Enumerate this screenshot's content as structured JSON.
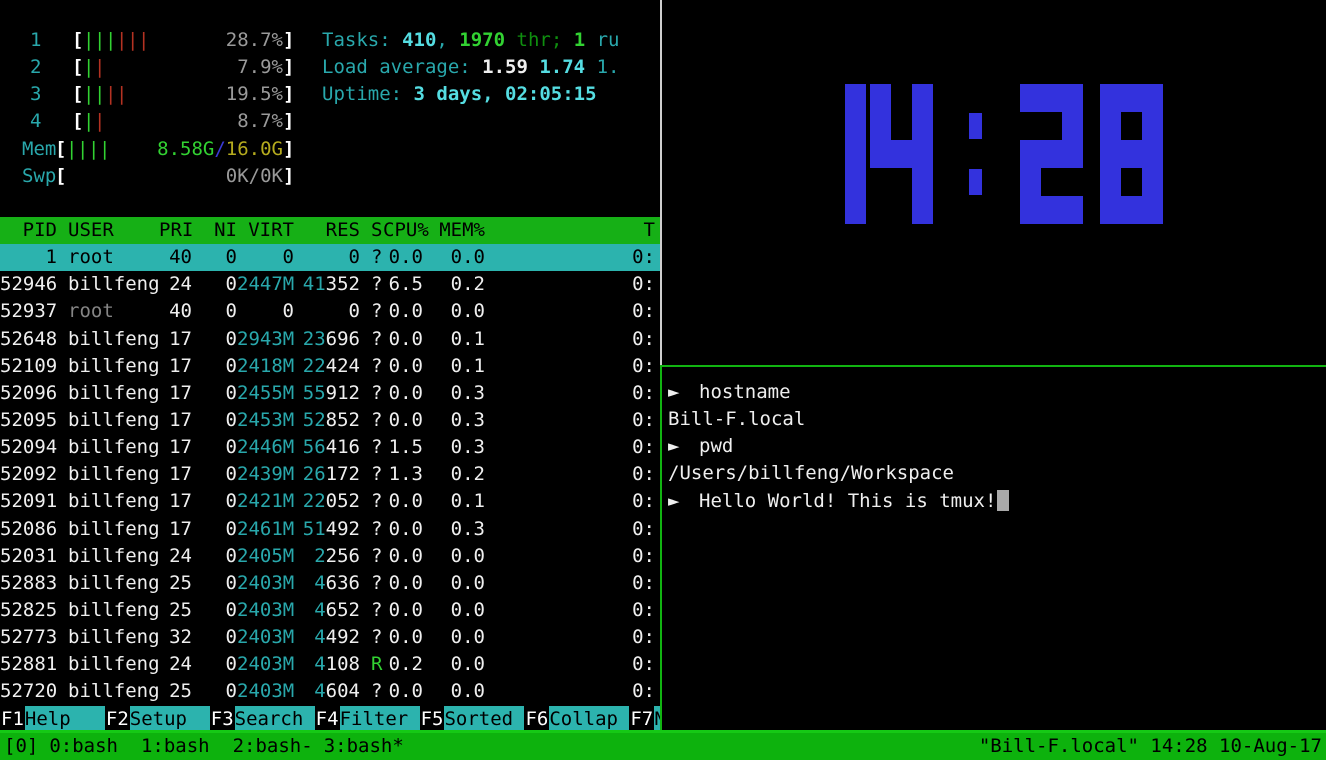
{
  "colors": {
    "cyan": "#29a8ac",
    "cyan_bright": "#55dde2",
    "white": "#efefef",
    "green_bright": "#32d232",
    "green_dark": "#0f8f0f",
    "red": "#b43222",
    "gray": "#9a9a9a",
    "dim": "#858585",
    "yellow": "#b5ab1e",
    "blue": "#3a3ad6",
    "clock_blue": "#3332dd",
    "selection_bg": "#2cb3ae",
    "header_bg": "#16b016",
    "status_bg": "#0db20d",
    "status_line": "#15c915",
    "border_active": "#11b411",
    "border_inactive": "#cfcfcf"
  },
  "htop": {
    "meters": [
      {
        "kind": "cpu",
        "label": "1",
        "bars": [
          "green",
          "green",
          "green",
          "red",
          "red",
          "red"
        ],
        "value": "28.7%"
      },
      {
        "kind": "cpu",
        "label": "2",
        "bars": [
          "green",
          "red"
        ],
        "value": "7.9%"
      },
      {
        "kind": "cpu",
        "label": "3",
        "bars": [
          "green",
          "green",
          "red",
          "red"
        ],
        "value": "19.5%"
      },
      {
        "kind": "cpu",
        "label": "4",
        "bars": [
          "green",
          "red"
        ],
        "value": "8.7%"
      },
      {
        "kind": "mem",
        "label": "Mem",
        "bars": [
          "green",
          "green",
          "green",
          "green"
        ],
        "value_segments": [
          {
            "text": "8.58G",
            "color": "bgreen"
          },
          {
            "text": "/",
            "color": "blue"
          },
          {
            "text": "16.0G",
            "color": "yellow"
          }
        ]
      },
      {
        "kind": "swp",
        "label": "Swp",
        "bars": [],
        "value": "0K/0K"
      }
    ],
    "summary_lines": [
      {
        "name": "tasks",
        "segments": [
          {
            "text": "Tasks: ",
            "color": "cyan"
          },
          {
            "text": "410",
            "color": "bcyan",
            "bold": true
          },
          {
            "text": ", ",
            "color": "cyan"
          },
          {
            "text": "1970",
            "color": "bgreen",
            "bold": true
          },
          {
            "text": " thr",
            "color": "dgreen"
          },
          {
            "text": "; ",
            "color": "dgreen"
          },
          {
            "text": "1",
            "color": "bgreen",
            "bold": true
          },
          {
            "text": " ru",
            "color": "cyan"
          }
        ]
      },
      {
        "name": "load-average",
        "segments": [
          {
            "text": "Load average: ",
            "color": "cyan"
          },
          {
            "text": "1.59 ",
            "color": "white",
            "bold": true
          },
          {
            "text": "1.74 ",
            "color": "bcyan",
            "bold": true
          },
          {
            "text": "1.",
            "color": "cyan"
          }
        ]
      },
      {
        "name": "uptime",
        "segments": [
          {
            "text": "Uptime: ",
            "color": "cyan"
          },
          {
            "text": "3 days, 02:05:15",
            "color": "bcyan",
            "bold": true
          }
        ]
      }
    ],
    "table": {
      "columns": {
        "pid": "PID",
        "user": "USER",
        "pri": "PRI",
        "ni": "NI",
        "virt": "VIRT",
        "res": "RES",
        "s": "S",
        "cpu": "CPU%",
        "mem": "MEM%",
        "time": "T"
      },
      "rows": [
        {
          "pid": "1",
          "user": "root",
          "pri": "40",
          "ni": "0",
          "virt": "0",
          "res_hi": "",
          "res_lo": "0",
          "s": "?",
          "cpu": "0.0",
          "mem": "0.0",
          "time": "0:",
          "selected": true
        },
        {
          "pid": "52946",
          "user": "billfeng",
          "pri": "24",
          "ni": "0",
          "virt": "2447M",
          "res_hi": "41",
          "res_lo": "352",
          "s": "?",
          "cpu": "6.5",
          "mem": "0.2",
          "time": "0:"
        },
        {
          "pid": "52937",
          "user": "root",
          "pri": "40",
          "ni": "0",
          "virt": "0",
          "res_hi": "",
          "res_lo": "0",
          "s": "?",
          "cpu": "0.0",
          "mem": "0.0",
          "time": "0:",
          "dim_user": true
        },
        {
          "pid": "52648",
          "user": "billfeng",
          "pri": "17",
          "ni": "0",
          "virt": "2943M",
          "res_hi": "23",
          "res_lo": "696",
          "s": "?",
          "cpu": "0.0",
          "mem": "0.1",
          "time": "0:"
        },
        {
          "pid": "52109",
          "user": "billfeng",
          "pri": "17",
          "ni": "0",
          "virt": "2418M",
          "res_hi": "22",
          "res_lo": "424",
          "s": "?",
          "cpu": "0.0",
          "mem": "0.1",
          "time": "0:"
        },
        {
          "pid": "52096",
          "user": "billfeng",
          "pri": "17",
          "ni": "0",
          "virt": "2455M",
          "res_hi": "55",
          "res_lo": "912",
          "s": "?",
          "cpu": "0.0",
          "mem": "0.3",
          "time": "0:"
        },
        {
          "pid": "52095",
          "user": "billfeng",
          "pri": "17",
          "ni": "0",
          "virt": "2453M",
          "res_hi": "52",
          "res_lo": "852",
          "s": "?",
          "cpu": "0.0",
          "mem": "0.3",
          "time": "0:"
        },
        {
          "pid": "52094",
          "user": "billfeng",
          "pri": "17",
          "ni": "0",
          "virt": "2446M",
          "res_hi": "56",
          "res_lo": "416",
          "s": "?",
          "cpu": "1.5",
          "mem": "0.3",
          "time": "0:"
        },
        {
          "pid": "52092",
          "user": "billfeng",
          "pri": "17",
          "ni": "0",
          "virt": "2439M",
          "res_hi": "26",
          "res_lo": "172",
          "s": "?",
          "cpu": "1.3",
          "mem": "0.2",
          "time": "0:"
        },
        {
          "pid": "52091",
          "user": "billfeng",
          "pri": "17",
          "ni": "0",
          "virt": "2421M",
          "res_hi": "22",
          "res_lo": "052",
          "s": "?",
          "cpu": "0.0",
          "mem": "0.1",
          "time": "0:"
        },
        {
          "pid": "52086",
          "user": "billfeng",
          "pri": "17",
          "ni": "0",
          "virt": "2461M",
          "res_hi": "51",
          "res_lo": "492",
          "s": "?",
          "cpu": "0.0",
          "mem": "0.3",
          "time": "0:"
        },
        {
          "pid": "52031",
          "user": "billfeng",
          "pri": "24",
          "ni": "0",
          "virt": "2405M",
          "res_hi": "2",
          "res_lo": "256",
          "s": "?",
          "cpu": "0.0",
          "mem": "0.0",
          "time": "0:"
        },
        {
          "pid": "52883",
          "user": "billfeng",
          "pri": "25",
          "ni": "0",
          "virt": "2403M",
          "res_hi": "4",
          "res_lo": "636",
          "s": "?",
          "cpu": "0.0",
          "mem": "0.0",
          "time": "0:"
        },
        {
          "pid": "52825",
          "user": "billfeng",
          "pri": "25",
          "ni": "0",
          "virt": "2403M",
          "res_hi": "4",
          "res_lo": "652",
          "s": "?",
          "cpu": "0.0",
          "mem": "0.0",
          "time": "0:"
        },
        {
          "pid": "52773",
          "user": "billfeng",
          "pri": "32",
          "ni": "0",
          "virt": "2403M",
          "res_hi": "4",
          "res_lo": "492",
          "s": "?",
          "cpu": "0.0",
          "mem": "0.0",
          "time": "0:"
        },
        {
          "pid": "52881",
          "user": "billfeng",
          "pri": "24",
          "ni": "0",
          "virt": "2403M",
          "res_hi": "4",
          "res_lo": "108",
          "s": "R",
          "cpu": "0.2",
          "mem": "0.0",
          "time": "0:",
          "s_green": true
        },
        {
          "pid": "52720",
          "user": "billfeng",
          "pri": "25",
          "ni": "0",
          "virt": "2403M",
          "res_hi": "4",
          "res_lo": "604",
          "s": "?",
          "cpu": "0.0",
          "mem": "0.0",
          "time": "0:"
        }
      ]
    },
    "fkeys": [
      {
        "key": "F1",
        "label": "Help"
      },
      {
        "key": "F2",
        "label": "Setup"
      },
      {
        "key": "F3",
        "label": "Search"
      },
      {
        "key": "F4",
        "label": "Filter"
      },
      {
        "key": "F5",
        "label": "Sorted"
      },
      {
        "key": "F6",
        "label": "Collap"
      },
      {
        "key": "F7",
        "label": "N"
      }
    ]
  },
  "clock": {
    "time": "14:28",
    "digit_patterns": {
      "0": [
        1,
        1,
        1,
        1,
        0,
        1,
        1,
        0,
        1,
        1,
        0,
        1,
        1,
        1,
        1
      ],
      "1": [
        0,
        0,
        1,
        0,
        0,
        1,
        0,
        0,
        1,
        0,
        0,
        1,
        0,
        0,
        1
      ],
      "2": [
        1,
        1,
        1,
        0,
        0,
        1,
        1,
        1,
        1,
        1,
        0,
        0,
        1,
        1,
        1
      ],
      "3": [
        1,
        1,
        1,
        0,
        0,
        1,
        1,
        1,
        1,
        0,
        0,
        1,
        1,
        1,
        1
      ],
      "4": [
        1,
        0,
        1,
        1,
        0,
        1,
        1,
        1,
        1,
        0,
        0,
        1,
        0,
        0,
        1
      ],
      "5": [
        1,
        1,
        1,
        1,
        0,
        0,
        1,
        1,
        1,
        0,
        0,
        1,
        1,
        1,
        1
      ],
      "6": [
        1,
        1,
        1,
        1,
        0,
        0,
        1,
        1,
        1,
        1,
        0,
        1,
        1,
        1,
        1
      ],
      "7": [
        1,
        1,
        1,
        0,
        0,
        1,
        0,
        0,
        1,
        0,
        0,
        1,
        0,
        0,
        1
      ],
      "8": [
        1,
        1,
        1,
        1,
        0,
        1,
        1,
        1,
        1,
        1,
        0,
        1,
        1,
        1,
        1
      ],
      "9": [
        1,
        1,
        1,
        1,
        0,
        1,
        1,
        1,
        1,
        0,
        0,
        1,
        1,
        1,
        1
      ]
    }
  },
  "terminal": {
    "prompt_symbol": "►",
    "lines": [
      {
        "type": "command",
        "text": "hostname"
      },
      {
        "type": "output",
        "text": "Bill-F.local"
      },
      {
        "type": "command",
        "text": "pwd"
      },
      {
        "type": "output",
        "text": "/Users/billfeng/Workspace"
      },
      {
        "type": "command",
        "text": "Hello World! This is tmux!",
        "cursor": true
      }
    ]
  },
  "tmux": {
    "status": {
      "session": "[0]",
      "windows": [
        {
          "label": "0:bash"
        },
        {
          "label": "1:bash"
        },
        {
          "label": "2:bash-",
          "flagged": true
        },
        {
          "label": "3:bash*",
          "flagged": true,
          "current": true
        }
      ],
      "right": "\"Bill-F.local\" 14:28 10-Aug-17"
    }
  }
}
